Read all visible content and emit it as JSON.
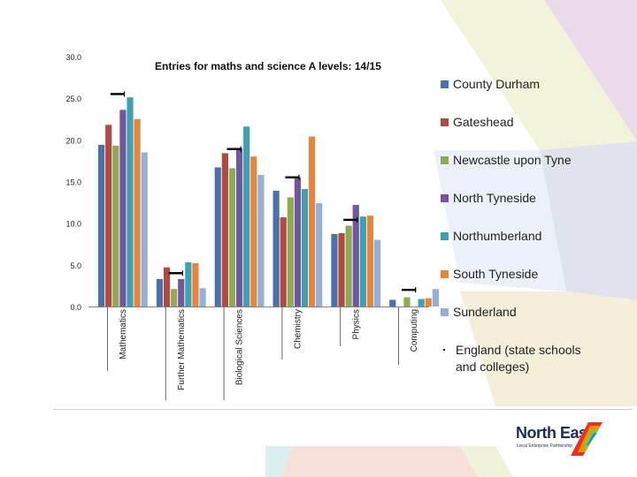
{
  "chart_data": {
    "type": "bar",
    "title": "Entries for maths and science A levels: 14/15",
    "xlabel": "",
    "ylabel": "",
    "ylim": [
      0,
      30
    ],
    "yticks": [
      "0.0",
      "5.0",
      "10.0",
      "15.0",
      "20.0",
      "25.0",
      "30.0"
    ],
    "categories": [
      "Mathematics",
      "Further Mathematics",
      "Biological Sciences",
      "Chemistry",
      "Physics",
      "Computing"
    ],
    "series": [
      {
        "name": "County Durham",
        "color": "#4a72a8",
        "values": [
          19.4,
          3.3,
          16.7,
          13.9,
          8.7,
          0.8
        ]
      },
      {
        "name": "Gateshead",
        "color": "#b04a45",
        "values": [
          21.8,
          4.7,
          18.4,
          10.7,
          8.8,
          0.0
        ]
      },
      {
        "name": "Newcastle upon Tyne",
        "color": "#8fab52",
        "values": [
          19.3,
          2.1,
          16.6,
          13.1,
          9.7,
          1.1
        ]
      },
      {
        "name": "North Tyneside",
        "color": "#73579a",
        "values": [
          23.6,
          3.3,
          19.0,
          15.5,
          12.2,
          0.0
        ]
      },
      {
        "name": "Northumberland",
        "color": "#3f9fb5",
        "values": [
          25.1,
          5.3,
          21.6,
          14.1,
          10.8,
          0.9
        ]
      },
      {
        "name": "South Tyneside",
        "color": "#e4873a",
        "values": [
          22.5,
          5.2,
          18.0,
          20.4,
          10.9,
          1.0
        ]
      },
      {
        "name": "Sunderland",
        "color": "#97aed6",
        "values": [
          18.5,
          2.2,
          15.8,
          12.4,
          8.0,
          2.1
        ]
      }
    ],
    "reference": {
      "name": "England (state schools and colleges)",
      "color": "#000000",
      "values": [
        25.5,
        4.0,
        18.9,
        15.5,
        10.4,
        2.0
      ]
    },
    "legend_position": "right"
  },
  "logo": {
    "name": "North East",
    "subtitle": "Local Enterprise Partnership"
  }
}
